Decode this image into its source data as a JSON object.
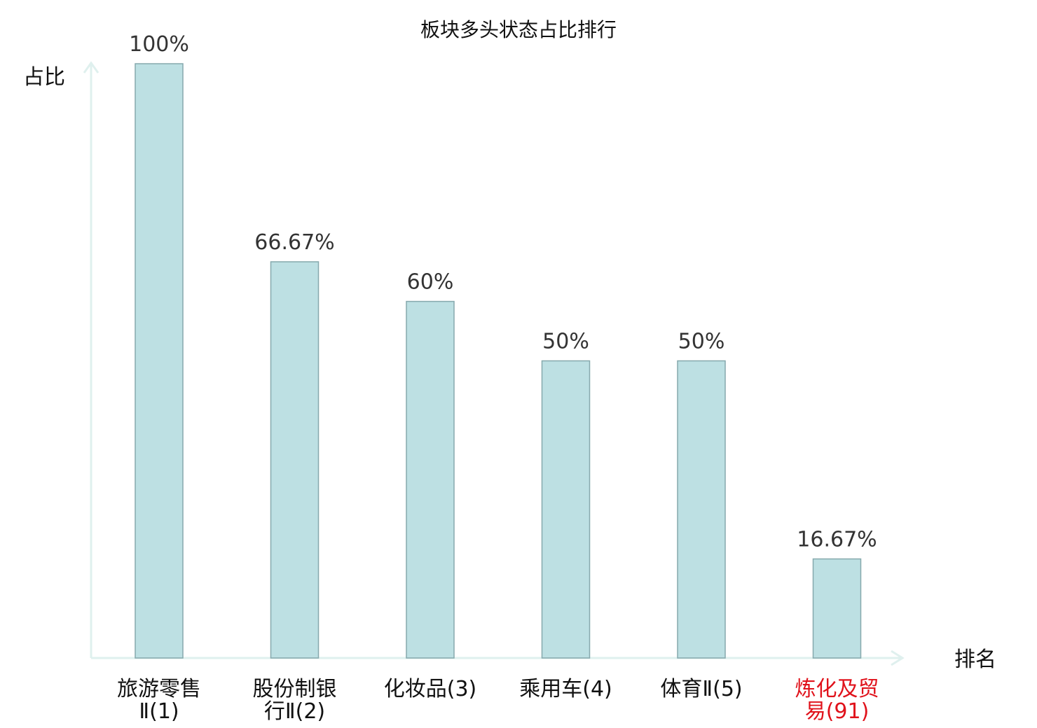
{
  "chart_data": {
    "type": "bar",
    "title": "板块多头状态占比排行",
    "ylabel": "占比",
    "xlabel": "排名",
    "categories": [
      [
        "旅游零售",
        "Ⅱ(1)"
      ],
      [
        "股份制银",
        "行Ⅱ(2)"
      ],
      [
        "化妆品(3)"
      ],
      [
        "乘用车(4)"
      ],
      [
        "体育Ⅱ(5)"
      ],
      [
        "炼化及贸",
        "易(91)"
      ]
    ],
    "values": [
      100,
      66.67,
      60,
      50,
      50,
      16.67
    ],
    "value_labels": [
      "100%",
      "66.67%",
      "60%",
      "50%",
      "50%",
      "16.67%"
    ],
    "highlight_index": 5,
    "ylim": [
      0,
      100
    ],
    "grid": false,
    "colors": {
      "bar_fill": "#bde0e3",
      "bar_stroke": "#86a9ad",
      "axis": "#dff0ee",
      "category_text": "#111111",
      "highlight_text": "#e0121b"
    }
  }
}
